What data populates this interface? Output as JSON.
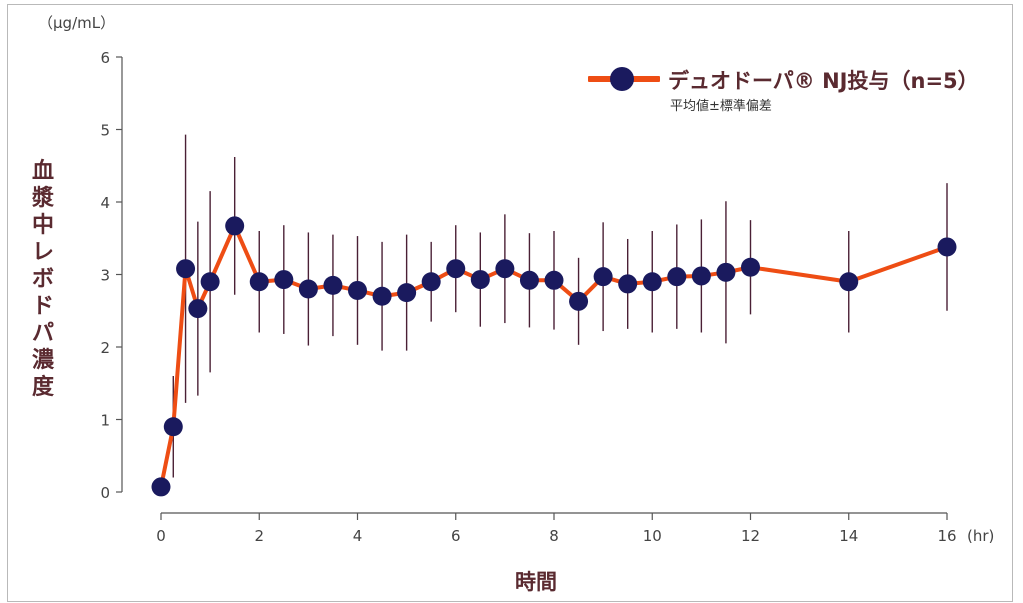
{
  "chart_data": {
    "type": "line",
    "unit_label": "（μg/mL）",
    "ylabel_chars": [
      "血",
      "漿",
      "中",
      "レ",
      "ボ",
      "ド",
      "パ",
      "濃",
      "度"
    ],
    "xlabel": "時間",
    "x_unit": "(hr)",
    "xlim": [
      0,
      16
    ],
    "ylim": [
      0,
      6
    ],
    "x_ticks": [
      0,
      2,
      4,
      6,
      8,
      10,
      12,
      14,
      16
    ],
    "y_ticks": [
      0,
      1,
      2,
      3,
      4,
      5,
      6
    ],
    "legend": {
      "position": "top-right",
      "label": "デュオドーパ® NJ投与（n=5）",
      "sublabel": "平均値±標準偏差"
    },
    "colors": {
      "line": "#ee4d14",
      "marker": "#1a1a5e",
      "errorbar": "#4a2035",
      "axis": "#555555"
    },
    "series": [
      {
        "x": [
          0,
          0.25,
          0.5,
          0.75,
          1,
          1.5,
          2,
          2.5,
          3,
          3.5,
          4,
          4.5,
          5,
          5.5,
          6,
          6.5,
          7,
          7.5,
          8,
          8.5,
          9,
          9.5,
          10,
          10.5,
          11,
          11.5,
          12,
          14,
          16
        ],
        "y": [
          0.07,
          0.9,
          3.08,
          2.53,
          2.9,
          3.67,
          2.9,
          2.93,
          2.8,
          2.85,
          2.78,
          2.7,
          2.75,
          2.9,
          3.08,
          2.93,
          3.08,
          2.92,
          2.92,
          2.63,
          2.97,
          2.87,
          2.9,
          2.97,
          2.98,
          3.03,
          3.1,
          2.9,
          3.38
        ],
        "sd": [
          0,
          0.7,
          1.85,
          1.2,
          1.25,
          0.95,
          0.7,
          0.75,
          0.78,
          0.7,
          0.75,
          0.75,
          0.8,
          0.55,
          0.6,
          0.65,
          0.75,
          0.65,
          0.68,
          0.6,
          0.75,
          0.62,
          0.7,
          0.72,
          0.78,
          0.98,
          0.65,
          0.7,
          0.88
        ]
      }
    ]
  }
}
